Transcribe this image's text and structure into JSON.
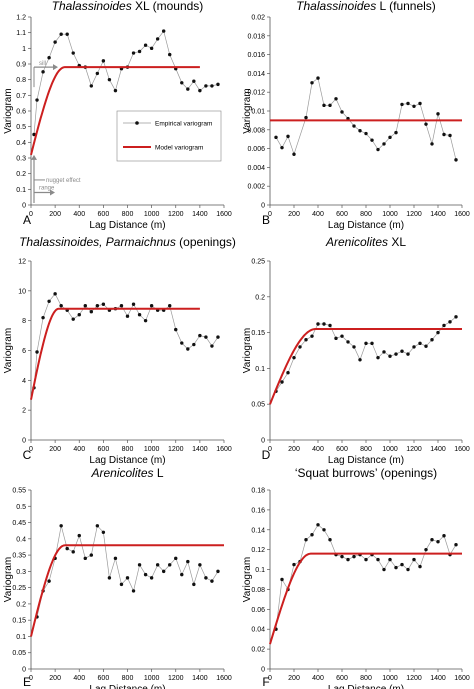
{
  "chart_data": [
    {
      "type": "line",
      "panel_label": "A",
      "title_parts": [
        {
          "text": "Thalassinoides",
          "italic": true
        },
        {
          "text": " XL (mounds)",
          "italic": false
        }
      ],
      "xlabel": "Lag Distance (m)",
      "ylabel": "Variogram",
      "xlim": [
        0,
        1600
      ],
      "ylim": [
        0,
        1.2
      ],
      "xticks": [
        0,
        200,
        400,
        600,
        800,
        1000,
        1200,
        1400,
        1600
      ],
      "yticks": [
        0,
        0.1,
        0.2,
        0.3,
        0.4,
        0.5,
        0.6,
        0.7,
        0.8,
        0.9,
        1,
        1.1,
        1.2
      ],
      "ytick_labels": [
        "0",
        "0.1",
        "0.2",
        "0.3",
        "0.4",
        "0.5",
        "0.6",
        "0.7",
        "0.8",
        "0.9",
        "1",
        "1.1",
        "1.2"
      ],
      "series": [
        {
          "name": "Empirical variogram",
          "kind": "empirical",
          "x": [
            25,
            50,
            100,
            150,
            200,
            250,
            300,
            350,
            400,
            450,
            500,
            550,
            600,
            650,
            700,
            750,
            800,
            850,
            900,
            950,
            1000,
            1050,
            1100,
            1150,
            1200,
            1250,
            1300,
            1350,
            1400,
            1450,
            1500,
            1550
          ],
          "y": [
            0.45,
            0.67,
            0.85,
            0.94,
            1.04,
            1.09,
            1.09,
            0.97,
            0.89,
            0.88,
            0.76,
            0.84,
            0.92,
            0.8,
            0.73,
            0.87,
            0.88,
            0.97,
            0.98,
            1.02,
            1.0,
            1.06,
            1.11,
            0.96,
            0.87,
            0.78,
            0.74,
            0.79,
            0.73,
            0.76,
            0.76,
            0.77
          ]
        },
        {
          "name": "Model variogram",
          "kind": "model",
          "model": "spherical",
          "nugget": 0.32,
          "sill": 0.88,
          "range": 280,
          "xmax": 1400
        }
      ],
      "legend": {
        "position": "center-right",
        "entries": [
          "Empirical variogram",
          "Model variogram"
        ]
      },
      "annotations": [
        {
          "text": "sill",
          "kind": "sill"
        },
        {
          "text": "nugget effect",
          "kind": "nugget"
        },
        {
          "text": "range",
          "kind": "range"
        }
      ]
    },
    {
      "type": "line",
      "panel_label": "B",
      "title_parts": [
        {
          "text": "Thalassinoides",
          "italic": true
        },
        {
          "text": " L (funnels)",
          "italic": false
        }
      ],
      "xlabel": "Lag Distance (m)",
      "ylabel": "Variogram",
      "xlim": [
        0,
        1600
      ],
      "ylim": [
        0,
        0.02
      ],
      "xticks": [
        0,
        200,
        400,
        600,
        800,
        1000,
        1200,
        1400,
        1600
      ],
      "yticks": [
        0,
        0.002,
        0.004,
        0.006,
        0.008,
        0.01,
        0.012,
        0.014,
        0.016,
        0.018,
        0.02
      ],
      "ytick_labels": [
        "0",
        "0.002",
        "0.004",
        "0.006",
        "0.008",
        "0.01",
        "0.012",
        "0.014",
        "0.016",
        "0.018",
        "0.02"
      ],
      "series": [
        {
          "name": "Empirical variogram",
          "kind": "empirical",
          "x": [
            50,
            100,
            150,
            200,
            300,
            350,
            400,
            450,
            500,
            550,
            600,
            650,
            700,
            750,
            800,
            850,
            900,
            950,
            1000,
            1050,
            1100,
            1150,
            1200,
            1250,
            1300,
            1350,
            1400,
            1450,
            1500,
            1550
          ],
          "y": [
            0.0072,
            0.0061,
            0.0073,
            0.0054,
            0.0093,
            0.013,
            0.0135,
            0.0106,
            0.0106,
            0.0113,
            0.0099,
            0.0092,
            0.0084,
            0.0079,
            0.0076,
            0.0069,
            0.0059,
            0.0065,
            0.0072,
            0.0077,
            0.0107,
            0.0108,
            0.0105,
            0.0108,
            0.0086,
            0.0065,
            0.0097,
            0.0075,
            0.0074,
            0.0048
          ]
        },
        {
          "name": "Model variogram",
          "kind": "model",
          "model": "constant",
          "level": 0.009,
          "xmax": 1600
        }
      ]
    },
    {
      "type": "line",
      "panel_label": "C",
      "title_parts": [
        {
          "text": "Thalassinoides, Parmaichnus",
          "italic": true
        },
        {
          "text": " (openings)",
          "italic": false
        }
      ],
      "xlabel": "Lag Distance (m)",
      "ylabel": "Variogram",
      "xlim": [
        0,
        1600
      ],
      "ylim": [
        0,
        12
      ],
      "xticks": [
        0,
        200,
        400,
        600,
        800,
        1000,
        1200,
        1400,
        1600
      ],
      "yticks": [
        0,
        2,
        4,
        6,
        8,
        10,
        12
      ],
      "ytick_labels": [
        "0",
        "2",
        "4",
        "6",
        "8",
        "10",
        "12"
      ],
      "series": [
        {
          "name": "Empirical variogram",
          "kind": "empirical",
          "x": [
            25,
            50,
            100,
            150,
            200,
            250,
            300,
            350,
            400,
            450,
            500,
            550,
            600,
            650,
            700,
            750,
            800,
            850,
            900,
            950,
            1000,
            1050,
            1100,
            1150,
            1200,
            1250,
            1300,
            1350,
            1400,
            1450,
            1500,
            1550
          ],
          "y": [
            3.5,
            5.9,
            8.2,
            9.3,
            9.8,
            9.0,
            8.7,
            8.1,
            8.4,
            9.0,
            8.6,
            9.0,
            9.1,
            8.7,
            8.8,
            9.0,
            8.3,
            9.1,
            8.4,
            8.0,
            9.0,
            8.7,
            8.7,
            9.0,
            7.4,
            6.5,
            6.1,
            6.4,
            7.0,
            6.9,
            6.3,
            6.9
          ]
        },
        {
          "name": "Model variogram",
          "kind": "model",
          "model": "spherical",
          "nugget": 2.7,
          "sill": 8.8,
          "range": 230,
          "xmax": 1400
        }
      ]
    },
    {
      "type": "line",
      "panel_label": "D",
      "title_parts": [
        {
          "text": "Arenicolites",
          "italic": true
        },
        {
          "text": " XL",
          "italic": false
        }
      ],
      "xlabel": "Lag Distance (m)",
      "ylabel": "Variogram",
      "xlim": [
        0,
        1600
      ],
      "ylim": [
        0,
        0.25
      ],
      "xticks": [
        0,
        200,
        400,
        600,
        800,
        1000,
        1200,
        1400,
        1600
      ],
      "yticks": [
        0,
        0.05,
        0.1,
        0.15,
        0.2,
        0.25
      ],
      "ytick_labels": [
        "0",
        "0.05",
        "0.1",
        "0.15",
        "0.2",
        "0.25"
      ],
      "series": [
        {
          "name": "Empirical variogram",
          "kind": "empirical",
          "x": [
            50,
            100,
            150,
            200,
            250,
            300,
            350,
            400,
            450,
            500,
            550,
            600,
            650,
            700,
            750,
            800,
            850,
            900,
            950,
            1000,
            1050,
            1100,
            1150,
            1200,
            1250,
            1300,
            1350,
            1400,
            1450,
            1500,
            1550
          ],
          "y": [
            0.068,
            0.081,
            0.094,
            0.115,
            0.13,
            0.14,
            0.145,
            0.162,
            0.162,
            0.16,
            0.142,
            0.145,
            0.137,
            0.13,
            0.112,
            0.135,
            0.135,
            0.115,
            0.123,
            0.117,
            0.12,
            0.124,
            0.12,
            0.13,
            0.135,
            0.131,
            0.14,
            0.15,
            0.16,
            0.165,
            0.172
          ]
        },
        {
          "name": "Model variogram",
          "kind": "model",
          "model": "spherical",
          "nugget": 0.05,
          "sill": 0.155,
          "range": 380,
          "xmax": 1600
        }
      ]
    },
    {
      "type": "line",
      "panel_label": "E",
      "title_parts": [
        {
          "text": "Arenicolites",
          "italic": true
        },
        {
          "text": " L",
          "italic": false
        }
      ],
      "xlabel": "Lag Distance (m)",
      "ylabel": "Variogram",
      "xlim": [
        0,
        1600
      ],
      "ylim": [
        0,
        0.55
      ],
      "xticks": [
        0,
        200,
        400,
        600,
        800,
        1000,
        1200,
        1400,
        1600
      ],
      "yticks": [
        0,
        0.05,
        0.1,
        0.15,
        0.2,
        0.25,
        0.3,
        0.35,
        0.4,
        0.45,
        0.5,
        0.55
      ],
      "ytick_labels": [
        "0",
        "0.05",
        "0.1",
        "0.15",
        "0.2",
        "0.25",
        "0.3",
        "0.35",
        "0.4",
        "0.45",
        "0.5",
        "0.55"
      ],
      "series": [
        {
          "name": "Empirical variogram",
          "kind": "empirical",
          "x": [
            50,
            100,
            150,
            200,
            250,
            300,
            350,
            400,
            450,
            500,
            550,
            600,
            650,
            700,
            750,
            800,
            850,
            900,
            950,
            1000,
            1050,
            1100,
            1150,
            1200,
            1250,
            1300,
            1350,
            1400,
            1450,
            1500,
            1550
          ],
          "y": [
            0.16,
            0.24,
            0.27,
            0.34,
            0.44,
            0.37,
            0.36,
            0.41,
            0.34,
            0.35,
            0.44,
            0.42,
            0.28,
            0.34,
            0.26,
            0.28,
            0.24,
            0.32,
            0.29,
            0.28,
            0.32,
            0.3,
            0.32,
            0.34,
            0.29,
            0.33,
            0.26,
            0.32,
            0.28,
            0.27,
            0.3
          ]
        },
        {
          "name": "Model variogram",
          "kind": "model",
          "model": "spherical",
          "nugget": 0.1,
          "sill": 0.38,
          "range": 280,
          "xmax": 1600
        }
      ]
    },
    {
      "type": "line",
      "panel_label": "F",
      "title_parts": [
        {
          "text": "‘Squat burrows’ (openings)",
          "italic": false
        }
      ],
      "xlabel": "Lag Distance (m)",
      "ylabel": "Variogram",
      "xlim": [
        0,
        1600
      ],
      "ylim": [
        0,
        0.18
      ],
      "xticks": [
        0,
        200,
        400,
        600,
        800,
        1000,
        1200,
        1400,
        1600
      ],
      "yticks": [
        0,
        0.02,
        0.04,
        0.06,
        0.08,
        0.1,
        0.12,
        0.14,
        0.16,
        0.18
      ],
      "ytick_labels": [
        "0",
        "0.02",
        "0.04",
        "0.06",
        "0.08",
        "0.1",
        "0.12",
        "0.14",
        "0.16",
        "0.18"
      ],
      "series": [
        {
          "name": "Empirical variogram",
          "kind": "empirical",
          "x": [
            50,
            100,
            150,
            200,
            250,
            300,
            350,
            400,
            450,
            500,
            550,
            600,
            650,
            700,
            750,
            800,
            850,
            900,
            950,
            1000,
            1050,
            1100,
            1150,
            1200,
            1250,
            1300,
            1350,
            1400,
            1450,
            1500,
            1550
          ],
          "y": [
            0.04,
            0.09,
            0.08,
            0.105,
            0.108,
            0.13,
            0.135,
            0.145,
            0.14,
            0.13,
            0.115,
            0.113,
            0.11,
            0.113,
            0.115,
            0.11,
            0.115,
            0.11,
            0.1,
            0.11,
            0.102,
            0.105,
            0.1,
            0.11,
            0.103,
            0.12,
            0.13,
            0.128,
            0.134,
            0.115,
            0.125
          ]
        },
        {
          "name": "Model variogram",
          "kind": "model",
          "model": "spherical",
          "nugget": 0.025,
          "sill": 0.116,
          "range": 340,
          "xmax": 1600
        }
      ]
    }
  ],
  "colors": {
    "model_line": "#cc1f1f",
    "empirical_line": "#9a9a9a",
    "empirical_marker": "#111111",
    "axis": "#555555",
    "annotation": "#8a8a8a"
  }
}
